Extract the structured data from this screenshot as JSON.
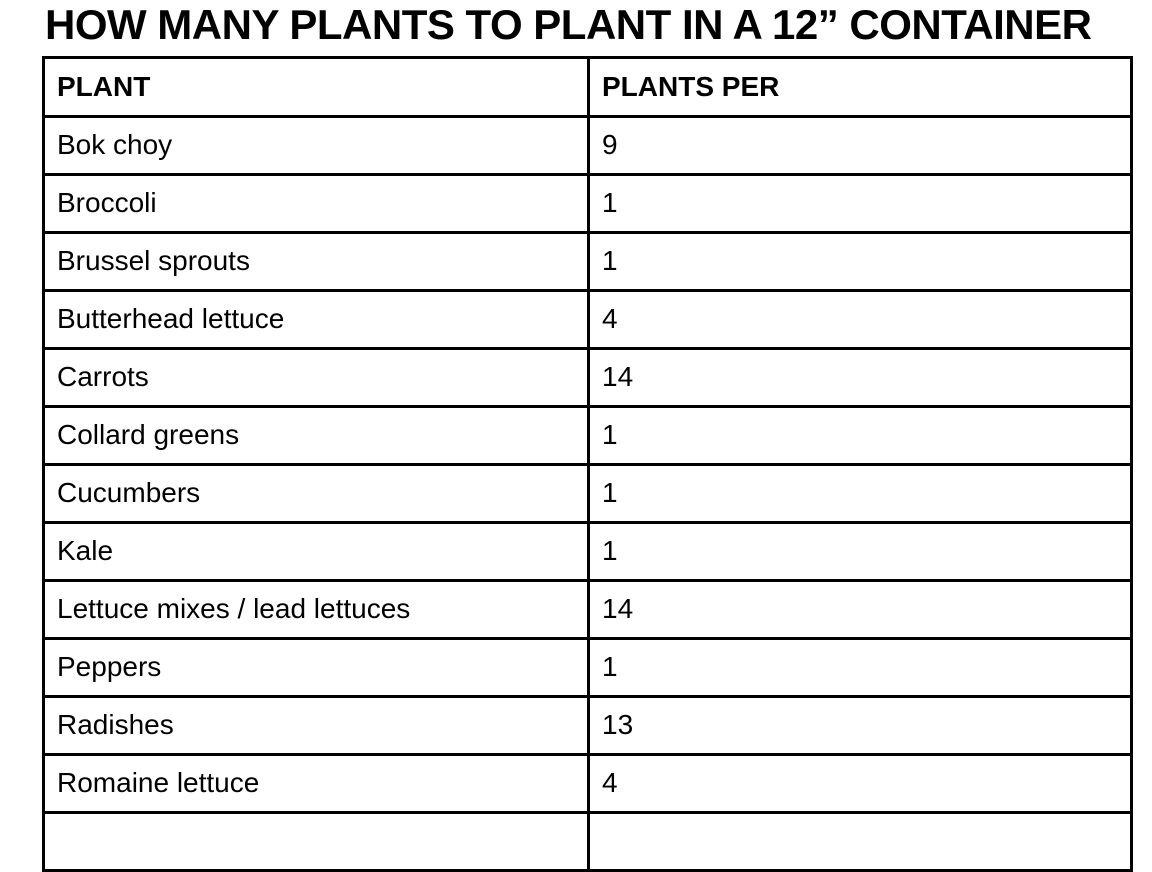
{
  "page": {
    "title": "HOW MANY PLANTS TO PLANT IN A 12” CONTAINER"
  },
  "table": {
    "columns": [
      {
        "label": "PLANT"
      },
      {
        "label": "PLANTS PER"
      }
    ],
    "rows": [
      {
        "plant": "Bok choy",
        "plants_per": "9"
      },
      {
        "plant": "Broccoli",
        "plants_per": "1"
      },
      {
        "plant": "Brussel sprouts",
        "plants_per": "1"
      },
      {
        "plant": "Butterhead lettuce",
        "plants_per": "4"
      },
      {
        "plant": "Carrots",
        "plants_per": "14"
      },
      {
        "plant": "Collard greens",
        "plants_per": "1"
      },
      {
        "plant": "Cucumbers",
        "plants_per": "1"
      },
      {
        "plant": "Kale",
        "plants_per": "1"
      },
      {
        "plant": "Lettuce mixes / lead lettuces",
        "plants_per": "14"
      },
      {
        "plant": "Peppers",
        "plants_per": "1"
      },
      {
        "plant": "Radishes",
        "plants_per": "13"
      },
      {
        "plant": "Romaine lettuce",
        "plants_per": "4"
      }
    ]
  },
  "colors": {
    "text": "#000000",
    "border": "#000000",
    "background": "#ffffff"
  }
}
